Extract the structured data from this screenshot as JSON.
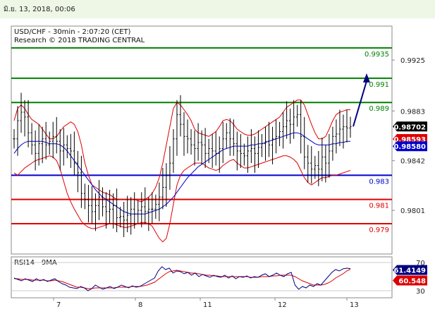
{
  "header": {
    "timestamp": "มิ.ย. 13, 2018, 00:06"
  },
  "colors": {
    "resistance": "#008000",
    "support": "#e00000",
    "pivot": "#0000cc",
    "price": "#000000",
    "bollinger": "#dd0000",
    "moving_average": "#0000cc",
    "arrow": "#000080"
  },
  "chart_data": [
    {
      "type": "line",
      "title": "USD/CHF - 30min - 2:07:20 (CET)",
      "subtitle": "Research © 2018 TRADING CENTRAL",
      "ylim": [
        0.9765,
        0.9953
      ],
      "y_ticks": [
        "0.9925",
        "0.9883",
        "0.9842",
        "0.9801"
      ],
      "y_tick_values": [
        0.9925,
        0.9883,
        0.9842,
        0.9801
      ],
      "x_ticks": [
        "7",
        "8",
        "11",
        "12",
        "13"
      ],
      "levels": [
        {
          "value": 0.9935,
          "label": "0.9935",
          "role": "resistance"
        },
        {
          "value": 0.991,
          "label": "0.991",
          "role": "resistance"
        },
        {
          "value": 0.989,
          "label": "0.989",
          "role": "resistance"
        },
        {
          "value": 0.983,
          "label": "0.983",
          "role": "pivot"
        },
        {
          "value": 0.981,
          "label": "0.981",
          "role": "support"
        },
        {
          "value": 0.979,
          "label": "0.979",
          "role": "support"
        }
      ],
      "badges": [
        {
          "label": "0.98702",
          "value": 0.98702,
          "bg": "#000000",
          "fg": "#ffffff"
        },
        {
          "label": "0.98593",
          "value": 0.98593,
          "bg": "#dd0000",
          "fg": "#ffffff"
        },
        {
          "label": "0.98580",
          "value": 0.9858,
          "bg": "#0000cc",
          "fg": "#ffffff"
        }
      ],
      "close": [
        0.986,
        0.9875,
        0.9882,
        0.9878,
        0.9865,
        0.9855,
        0.9848,
        0.9856,
        0.986,
        0.9855,
        0.9858,
        0.9862,
        0.9858,
        0.985,
        0.9855,
        0.9852,
        0.985,
        0.984,
        0.9832,
        0.9815,
        0.981,
        0.9805,
        0.98,
        0.9805,
        0.9812,
        0.9804,
        0.98,
        0.9802,
        0.9805,
        0.9795,
        0.9796,
        0.9793,
        0.9797,
        0.9802,
        0.9798,
        0.9801,
        0.9804,
        0.98,
        0.9802,
        0.9802,
        0.9806,
        0.9812,
        0.982,
        0.983,
        0.984,
        0.986,
        0.988,
        0.9872,
        0.9862,
        0.986,
        0.9855,
        0.9852,
        0.9857,
        0.9855,
        0.9848,
        0.9852,
        0.985,
        0.9848,
        0.9852,
        0.986,
        0.9865,
        0.986,
        0.9856,
        0.985,
        0.9848,
        0.9846,
        0.985,
        0.9852,
        0.9848,
        0.9853,
        0.9856,
        0.9858,
        0.9855,
        0.986,
        0.9862,
        0.9866,
        0.987,
        0.9875,
        0.9872,
        0.9878,
        0.988,
        0.9862,
        0.9845,
        0.984,
        0.9835,
        0.9838,
        0.9835,
        0.9845,
        0.984,
        0.985,
        0.9862,
        0.9864,
        0.9868,
        0.987,
        0.9869,
        0.98702
      ],
      "bollinger_upper": [
        0.9875,
        0.9885,
        0.9888,
        0.9885,
        0.988,
        0.9876,
        0.9874,
        0.9872,
        0.9868,
        0.9864,
        0.986,
        0.986,
        0.9862,
        0.9866,
        0.987,
        0.9872,
        0.9874,
        0.9872,
        0.9866,
        0.9855,
        0.984,
        0.983,
        0.9822,
        0.982,
        0.9818,
        0.9816,
        0.9815,
        0.9814,
        0.9812,
        0.981,
        0.981,
        0.981,
        0.981,
        0.981,
        0.981,
        0.9809,
        0.9808,
        0.981,
        0.9812,
        0.9815,
        0.982,
        0.9828,
        0.984,
        0.9855,
        0.987,
        0.9885,
        0.989,
        0.9888,
        0.9884,
        0.988,
        0.9875,
        0.9868,
        0.9865,
        0.9864,
        0.9863,
        0.9862,
        0.9864,
        0.9866,
        0.987,
        0.9875,
        0.9876,
        0.9875,
        0.9872,
        0.9868,
        0.9866,
        0.9864,
        0.9863,
        0.9863,
        0.9864,
        0.9866,
        0.9868,
        0.987,
        0.9872,
        0.9874,
        0.9876,
        0.9878,
        0.9882,
        0.9886,
        0.9888,
        0.989,
        0.9892,
        0.9892,
        0.9888,
        0.988,
        0.9872,
        0.9865,
        0.986,
        0.986,
        0.9862,
        0.9868,
        0.9875,
        0.988,
        0.9882,
        0.9883,
        0.9884,
        0.9884
      ],
      "bollinger_lower": [
        0.9832,
        0.983,
        0.9833,
        0.9836,
        0.9838,
        0.984,
        0.9842,
        0.9843,
        0.9844,
        0.9845,
        0.9846,
        0.9845,
        0.9842,
        0.9835,
        0.9825,
        0.9815,
        0.9808,
        0.9802,
        0.9797,
        0.9792,
        0.9789,
        0.9787,
        0.9786,
        0.9786,
        0.9787,
        0.9788,
        0.9789,
        0.979,
        0.979,
        0.9789,
        0.9788,
        0.9787,
        0.9787,
        0.9788,
        0.9789,
        0.979,
        0.9791,
        0.9791,
        0.979,
        0.9788,
        0.9783,
        0.9778,
        0.9775,
        0.9778,
        0.979,
        0.9806,
        0.9822,
        0.983,
        0.9834,
        0.9836,
        0.9838,
        0.984,
        0.984,
        0.984,
        0.9838,
        0.9836,
        0.9835,
        0.9834,
        0.9835,
        0.9838,
        0.984,
        0.9842,
        0.9843,
        0.984,
        0.9838,
        0.9836,
        0.9836,
        0.9837,
        0.9838,
        0.9839,
        0.984,
        0.9841,
        0.9842,
        0.9843,
        0.9844,
        0.9845,
        0.9846,
        0.9846,
        0.9845,
        0.9843,
        0.984,
        0.9834,
        0.9828,
        0.9824,
        0.9822,
        0.9824,
        0.9826,
        0.9828,
        0.9828,
        0.9829,
        0.983,
        0.983,
        0.9831,
        0.9832,
        0.9833,
        0.9834
      ],
      "moving_average": [
        0.9848,
        0.9852,
        0.9855,
        0.9857,
        0.9858,
        0.9858,
        0.9858,
        0.9858,
        0.9858,
        0.9857,
        0.9856,
        0.9856,
        0.9856,
        0.9855,
        0.9853,
        0.985,
        0.9846,
        0.9842,
        0.9838,
        0.9834,
        0.983,
        0.9826,
        0.9822,
        0.9818,
        0.9815,
        0.9812,
        0.981,
        0.9808,
        0.9806,
        0.9804,
        0.9802,
        0.98,
        0.9799,
        0.9798,
        0.9798,
        0.9798,
        0.9798,
        0.9798,
        0.9799,
        0.98,
        0.9801,
        0.9802,
        0.9804,
        0.9806,
        0.9809,
        0.9812,
        0.9816,
        0.982,
        0.9824,
        0.9828,
        0.9831,
        0.9834,
        0.9837,
        0.9839,
        0.9841,
        0.9843,
        0.9845,
        0.9847,
        0.9849,
        0.9851,
        0.9852,
        0.9853,
        0.9854,
        0.9854,
        0.9854,
        0.9854,
        0.9854,
        0.9855,
        0.9855,
        0.9856,
        0.9856,
        0.9857,
        0.9858,
        0.9859,
        0.986,
        0.9861,
        0.9862,
        0.9863,
        0.9864,
        0.9865,
        0.9865,
        0.9864,
        0.9862,
        0.986,
        0.9858,
        0.9856,
        0.9855,
        0.9855,
        0.9855,
        0.9855,
        0.9856,
        0.9856,
        0.9857,
        0.9857,
        0.9858,
        0.9858
      ]
    },
    {
      "type": "line",
      "title": "RSI14 - 9MA",
      "ylim": [
        20,
        78
      ],
      "y_ticks": [
        "70",
        "30"
      ],
      "y_tick_values": [
        70,
        30
      ],
      "badges": [
        {
          "label": "61.4149",
          "value": 61.4149,
          "bg": "#000080",
          "fg": "#ffffff"
        },
        {
          "label": "60.548",
          "value": 60.548,
          "bg": "#dd0000",
          "fg": "#ffffff"
        }
      ],
      "rsi": [
        48,
        46,
        44,
        47,
        45,
        43,
        47,
        44,
        46,
        43,
        45,
        47,
        43,
        40,
        38,
        35,
        34,
        33,
        36,
        34,
        30,
        33,
        38,
        35,
        32,
        34,
        36,
        33,
        35,
        38,
        36,
        34,
        37,
        35,
        36,
        39,
        42,
        45,
        48,
        58,
        64,
        60,
        62,
        55,
        58,
        57,
        54,
        56,
        52,
        55,
        50,
        53,
        51,
        49,
        52,
        50,
        49,
        52,
        48,
        51,
        47,
        50,
        49,
        51,
        48,
        50,
        49,
        52,
        54,
        50,
        52,
        55,
        52,
        50,
        54,
        56,
        38,
        32,
        36,
        34,
        38,
        36,
        40,
        38,
        44,
        50,
        56,
        60,
        58,
        61,
        62,
        61.4149
      ],
      "rsi_ma": [
        47,
        47,
        46,
        46,
        46,
        45,
        45,
        45,
        45,
        44,
        44,
        45,
        44,
        43,
        41,
        39,
        37,
        35,
        35,
        34,
        33,
        33,
        34,
        34,
        34,
        34,
        34,
        34,
        35,
        35,
        35,
        35,
        36,
        36,
        36,
        37,
        38,
        40,
        42,
        46,
        50,
        54,
        57,
        58,
        59,
        58,
        57,
        56,
        55,
        55,
        54,
        53,
        52,
        52,
        51,
        51,
        50,
        50,
        50,
        50,
        50,
        50,
        50,
        50,
        49,
        49,
        49,
        50,
        50,
        50,
        51,
        51,
        52,
        52,
        52,
        52,
        50,
        47,
        44,
        42,
        40,
        38,
        38,
        38,
        39,
        41,
        44,
        48,
        51,
        54,
        58,
        60.548
      ]
    }
  ]
}
